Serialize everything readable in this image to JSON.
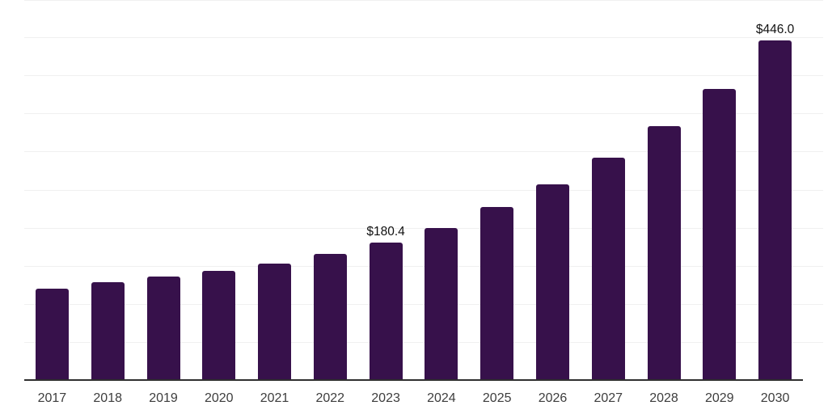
{
  "chart_data": {
    "type": "bar",
    "title": "",
    "xlabel": "",
    "ylabel": "",
    "categories": [
      "2017",
      "2018",
      "2019",
      "2020",
      "2021",
      "2022",
      "2023",
      "2024",
      "2025",
      "2026",
      "2027",
      "2028",
      "2029",
      "2030"
    ],
    "values": [
      120,
      128,
      136,
      143,
      153,
      166,
      180.4,
      200,
      227,
      257,
      292,
      333,
      382,
      446
    ],
    "annotations": [
      {
        "category": "2023",
        "text": "$180.4"
      },
      {
        "category": "2030",
        "text": "$446.0"
      }
    ],
    "ylim": [
      0,
      500
    ],
    "gridline_step": 50,
    "grid": true,
    "legend": false,
    "colors": {
      "bar": "#37114b",
      "axis_line": "#2f2f2f",
      "gridline": "#f0f0f0",
      "tick_label": "#3d3d3d",
      "data_label": "#111111",
      "background": "#ffffff"
    }
  }
}
